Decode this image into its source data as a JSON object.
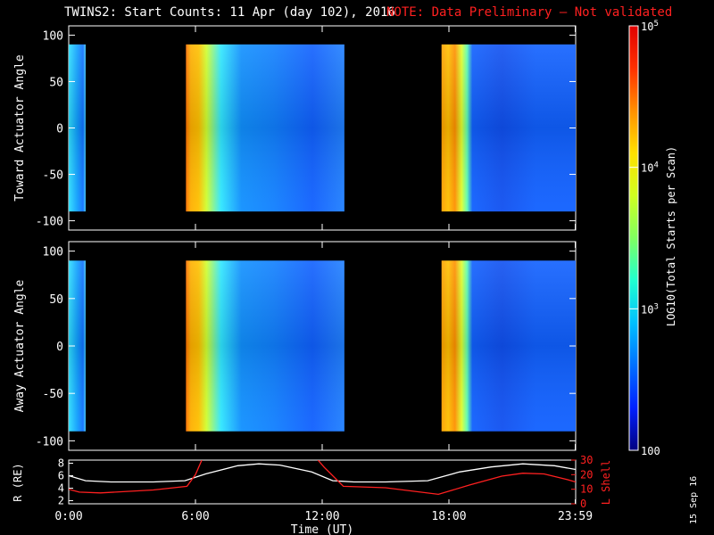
{
  "title": "TWINS2: Start Counts: 11 Apr (day 102), 2016",
  "note": "NOTE: Data Preliminary – Not validated",
  "stamp": "15 Sep 16",
  "colorbar_label": "LOG10(Total Starts per Scan)",
  "colors": {
    "note": "#ff2020",
    "lshell": "#ff2020",
    "r_line": "#ffffff",
    "background": "#000000"
  },
  "chart_data": [
    {
      "type": "heatmap",
      "name": "toward",
      "ylabel": "Toward Actuator Angle",
      "yticks": [
        100,
        50,
        0,
        -50,
        -100
      ],
      "ylim": [
        -110,
        110
      ],
      "data_ylim": [
        -90,
        90
      ],
      "xlim_hours": [
        0,
        24
      ],
      "data_blocks_hours": [
        [
          0,
          0.8
        ],
        [
          5.55,
          13.05
        ],
        [
          17.65,
          24
        ]
      ]
    },
    {
      "type": "heatmap",
      "name": "away",
      "ylabel": "Away Actuator Angle",
      "yticks": [
        100,
        50,
        0,
        -50,
        -100
      ],
      "ylim": [
        -110,
        110
      ],
      "data_ylim": [
        -90,
        90
      ],
      "xlim_hours": [
        0,
        24
      ],
      "data_blocks_hours": [
        [
          0,
          0.8
        ],
        [
          5.55,
          13.05
        ],
        [
          17.65,
          24
        ]
      ]
    },
    {
      "type": "line",
      "name": "orbit",
      "xlabel": "Time (UT)",
      "xticks": [
        "0:00",
        "6:00",
        "12:00",
        "18:00",
        "23:59"
      ],
      "xtick_hours": [
        0,
        6,
        12,
        18,
        23.98
      ],
      "left_axis": {
        "label": "R (RE)",
        "ticks": [
          8,
          6,
          4,
          2
        ],
        "ylim": [
          1.5,
          8.5
        ]
      },
      "right_axis": {
        "label": "L Shell",
        "ticks": [
          30,
          20,
          10,
          0
        ],
        "ylim": [
          0,
          30
        ]
      },
      "series": [
        {
          "axis": "left",
          "color": "#ffffff",
          "x": [
            0,
            0.8,
            2,
            4,
            5.5,
            6.5,
            8,
            9,
            10,
            11.5,
            12.5,
            13.5,
            15,
            17,
            18.5,
            20,
            21.5,
            23,
            24
          ],
          "y": [
            6.0,
            5.2,
            5.0,
            5.0,
            5.2,
            6.3,
            7.6,
            7.9,
            7.7,
            6.6,
            5.2,
            5.0,
            5.0,
            5.2,
            6.6,
            7.4,
            7.9,
            7.6,
            7.0
          ]
        },
        {
          "axis": "right",
          "color": "#ff2020",
          "x": [
            0,
            0.5,
            1.5,
            4,
            5.6,
            6.0,
            6.3
          ],
          "y": [
            10,
            8,
            7.5,
            9.5,
            12,
            20,
            30
          ]
        },
        {
          "axis": "right",
          "color": "#ff2020",
          "x": [
            11.8,
            12.1,
            13.0,
            15,
            17.5,
            19,
            20.5,
            21.5,
            22.5,
            23.5,
            24
          ],
          "y": [
            30,
            25,
            12,
            11,
            6.5,
            13,
            19,
            21,
            20.5,
            17,
            15
          ]
        }
      ]
    },
    {
      "type": "colorbar",
      "scale": "log",
      "range": [
        100,
        100000
      ],
      "tick_labels": [
        "10^5",
        "10^4",
        "10^3",
        "100"
      ],
      "colormap": [
        "#000080",
        "#0020ff",
        "#0070ff",
        "#00c0ff",
        "#20ffd0",
        "#80ff60",
        "#d0ff20",
        "#ffe000",
        "#ff9000",
        "#ff3000",
        "#e00000"
      ]
    }
  ]
}
